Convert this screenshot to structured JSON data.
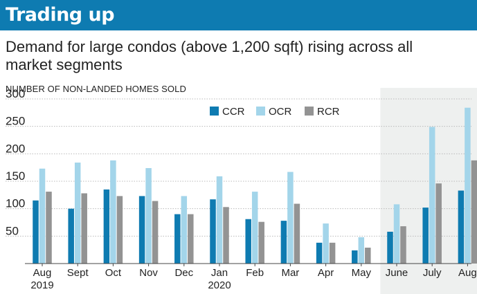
{
  "header": {
    "title": "Trading up"
  },
  "subtitle": "Demand for large condos (above 1,200 sqft) rising across all market segments",
  "chart_data": {
    "type": "bar",
    "title": "Trading up",
    "subtitle": "Demand for large condos (above 1,200 sqft) rising across all market segments",
    "ylabel": "NUMBER OF NON-LANDED HOMES SOLD",
    "xlabel": "",
    "ylim": [
      0,
      300
    ],
    "yticks": [
      50,
      100,
      150,
      200,
      250,
      300
    ],
    "categories": [
      "Aug",
      "Sept",
      "Oct",
      "Nov",
      "Dec",
      "Jan",
      "Feb",
      "Mar",
      "Apr",
      "May",
      "June",
      "July",
      "Aug"
    ],
    "category_sublabels": [
      "2019",
      "",
      "",
      "",
      "",
      "2020",
      "",
      "",
      "",
      "",
      "",
      "",
      ""
    ],
    "highlight_categories": [
      "June",
      "July",
      "Aug"
    ],
    "legend_position": "top-center",
    "series": [
      {
        "name": "CCR",
        "color": "#0e7bb1",
        "values": [
          115,
          100,
          135,
          123,
          90,
          117,
          81,
          78,
          38,
          24,
          58,
          102,
          133
        ]
      },
      {
        "name": "OCR",
        "color": "#a3d5ea",
        "values": [
          173,
          184,
          188,
          174,
          123,
          159,
          131,
          167,
          73,
          48,
          108,
          249,
          284
        ]
      },
      {
        "name": "RCR",
        "color": "#939393",
        "values": [
          131,
          128,
          123,
          114,
          90,
          103,
          76,
          109,
          38,
          29,
          68,
          146,
          188
        ]
      }
    ]
  }
}
